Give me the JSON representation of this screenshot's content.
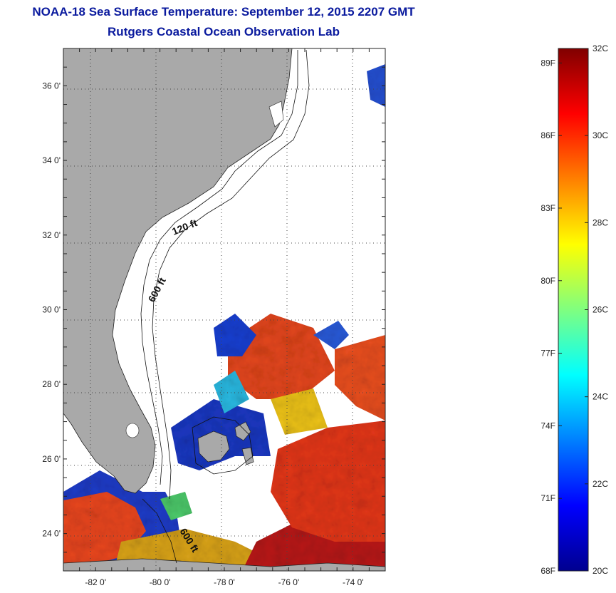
{
  "header": {
    "title": "NOAA-18 Sea Surface Temperature:  September 12, 2015 2207 GMT",
    "subtitle": "Rutgers Coastal Ocean Observation Lab"
  },
  "map": {
    "lon_range": [
      -83,
      -73
    ],
    "lat_range": [
      23,
      37
    ],
    "x_ticks": [
      {
        "value": -82,
        "label": "-82 0'"
      },
      {
        "value": -80,
        "label": "-80 0'"
      },
      {
        "value": -78,
        "label": "-78 0'"
      },
      {
        "value": -76,
        "label": "-76 0'"
      },
      {
        "value": -74,
        "label": "-74 0'"
      }
    ],
    "y_ticks": [
      {
        "value": 36,
        "label": "36 0'"
      },
      {
        "value": 34,
        "label": "34 0'"
      },
      {
        "value": 32,
        "label": "32 0'"
      },
      {
        "value": 30,
        "label": "30 0'"
      },
      {
        "value": 28,
        "label": "28 0'"
      },
      {
        "value": 26,
        "label": "26 0'"
      },
      {
        "value": 24,
        "label": "24 0'"
      }
    ],
    "contour_labels": [
      "120 ft",
      "600 ft",
      "600 ft"
    ],
    "colors": {
      "land": "#a9a9a9",
      "ocean": "#ffffff",
      "grid": "#444444"
    }
  },
  "colorbar": {
    "range_c": [
      20,
      32
    ],
    "fahrenheit_labels": [
      "89F",
      "86F",
      "83F",
      "80F",
      "77F",
      "74F",
      "71F",
      "68F"
    ],
    "celsius_labels": [
      "32C",
      "30C",
      "28C",
      "26C",
      "24C",
      "22C",
      "20C"
    ]
  }
}
